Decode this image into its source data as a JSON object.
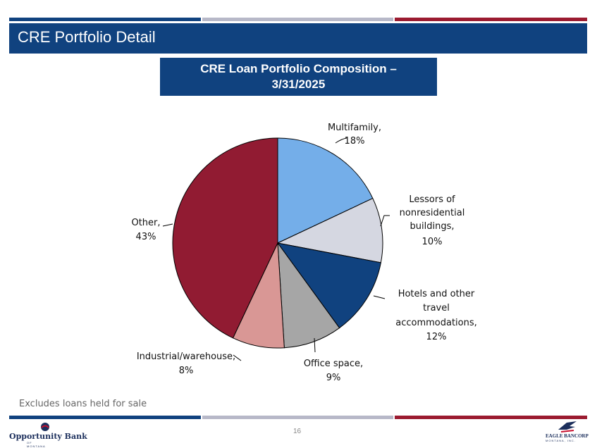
{
  "slide": {
    "title": "CRE Portfolio Detail",
    "chart_heading": "CRE Loan Portfolio Composition – 3/31/2025",
    "footnote": "Excludes loans held for sale",
    "page_number": "16"
  },
  "branding": {
    "left_logo_name": "Opportunity Bank",
    "left_logo_sub": "OF MONTANA",
    "right_logo_name": "EAGLE BANCORP",
    "right_logo_sub": "MONTANA, INC."
  },
  "colors": {
    "navy": "#10427f",
    "gray_bar": "#b7b8c8",
    "red_bar": "#9b1b30"
  },
  "chart_data": {
    "type": "pie",
    "title": "CRE Loan Portfolio Composition – 3/31/2025",
    "start": "12 o'clock",
    "direction": "clockwise",
    "slices": [
      {
        "label": "Multifamily,",
        "pct_text": "18%",
        "value": 18,
        "color": "#74aee9"
      },
      {
        "label": "Lessors of nonresidential buildings,",
        "pct_text": "10%",
        "value": 10,
        "color": "#d5d7e1"
      },
      {
        "label": "Hotels and other travel accommodations,",
        "pct_text": "12%",
        "value": 12,
        "color": "#10427f"
      },
      {
        "label": "Office space,",
        "pct_text": "9%",
        "value": 9,
        "color": "#a6a6a6"
      },
      {
        "label": "Industrial/warehouse,",
        "pct_text": "8%",
        "value": 8,
        "color": "#d99795"
      },
      {
        "label": "Other,",
        "pct_text": "43%",
        "value": 43,
        "color": "#911b32"
      }
    ]
  }
}
